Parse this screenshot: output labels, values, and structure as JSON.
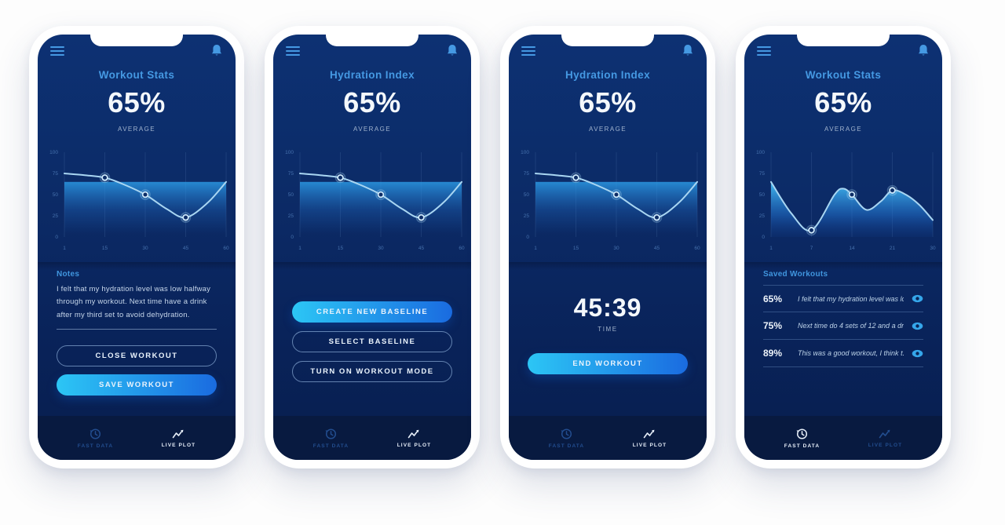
{
  "colors": {
    "accent_blue": "#4599e3",
    "button_gradient_start": "#2cc6f5",
    "button_gradient_end": "#1a6be0",
    "screen_gradient_top": "#0d3173",
    "screen_gradient_bottom": "#081e4e",
    "nav_background": "#081a40",
    "chart_line": "#a9d6f2",
    "value_text": "#f4f8fc"
  },
  "chart_data": [
    {
      "type": "line",
      "title": "Hydration over workout (used on screens 1-3)",
      "xticks": [
        1,
        15,
        30,
        45,
        60
      ],
      "yticks": [
        100,
        75,
        50,
        25,
        0
      ],
      "ylim": [
        0,
        100
      ],
      "grid": "vertical",
      "average_band_top": 65,
      "points": [
        [
          1,
          75
        ],
        [
          8,
          73
        ],
        [
          15,
          70
        ],
        [
          22,
          62
        ],
        [
          30,
          50
        ],
        [
          38,
          33
        ],
        [
          45,
          23
        ],
        [
          53,
          40
        ],
        [
          60,
          65
        ]
      ],
      "markers": [
        [
          15,
          70
        ],
        [
          30,
          50
        ],
        [
          45,
          23
        ]
      ]
    },
    {
      "type": "area",
      "title": "Past workout data (used on screen 4)",
      "xticks": [
        1,
        7,
        14,
        21,
        30
      ],
      "yticks": [
        100,
        75,
        50,
        25,
        0
      ],
      "ylim": [
        0,
        100
      ],
      "grid": "vertical",
      "points": [
        [
          1,
          65
        ],
        [
          4,
          28
        ],
        [
          7,
          8
        ],
        [
          11,
          50
        ],
        [
          12.5,
          57
        ],
        [
          14,
          50
        ],
        [
          16.5,
          32
        ],
        [
          19,
          42
        ],
        [
          21,
          55
        ],
        [
          24,
          50
        ],
        [
          27,
          38
        ],
        [
          30,
          20
        ]
      ],
      "markers": [
        [
          7,
          8
        ],
        [
          14,
          50
        ],
        [
          21,
          55
        ]
      ]
    }
  ],
  "phones": [
    {
      "title": "Workout Stats",
      "value": "65%",
      "value_caption": "AVERAGE",
      "notes": {
        "label": "Notes",
        "text": "I felt that my hydration level was low halfway through my workout. Next time have a drink after my third set to avoid dehydration."
      },
      "buttons": [
        {
          "label": "CLOSE WORKOUT",
          "style": "outline"
        },
        {
          "label": "SAVE WORKOUT",
          "style": "primary"
        }
      ],
      "nav": {
        "items": [
          {
            "label": "FAST DATA"
          },
          {
            "label": "LIVE PLOT"
          }
        ],
        "active": 1
      }
    },
    {
      "title": "Hydration Index",
      "value": "65%",
      "value_caption": "AVERAGE",
      "buttons": [
        {
          "label": "CREATE NEW BASELINE",
          "style": "primary"
        },
        {
          "label": "SELECT BASELINE",
          "style": "outline"
        },
        {
          "label": "TURN ON WORKOUT MODE",
          "style": "outline"
        }
      ],
      "nav": {
        "items": [
          {
            "label": "FAST DATA"
          },
          {
            "label": "LIVE PLOT"
          }
        ],
        "active": 1
      }
    },
    {
      "title": "Hydration Index",
      "value": "65%",
      "value_caption": "AVERAGE",
      "timer": {
        "value": "45:39",
        "caption": "TIME"
      },
      "buttons": [
        {
          "label": "END WORKOUT",
          "style": "primary"
        }
      ],
      "nav": {
        "items": [
          {
            "label": "FAST DATA"
          },
          {
            "label": "LIVE PLOT"
          }
        ],
        "active": 1
      }
    },
    {
      "title": "Workout Stats",
      "value": "65%",
      "value_caption": "AVERAGE",
      "saved": {
        "label": "Saved Workouts",
        "items": [
          {
            "pct": "65%",
            "note": "I felt that my hydration level was lo..."
          },
          {
            "pct": "75%",
            "note": "Next time do 4 sets of 12 and a dr..."
          },
          {
            "pct": "89%",
            "note": "This was a good workout, I think t..."
          }
        ]
      },
      "nav": {
        "items": [
          {
            "label": "FAST DATA"
          },
          {
            "label": "LIVE PLOT"
          }
        ],
        "active": 0
      }
    }
  ]
}
